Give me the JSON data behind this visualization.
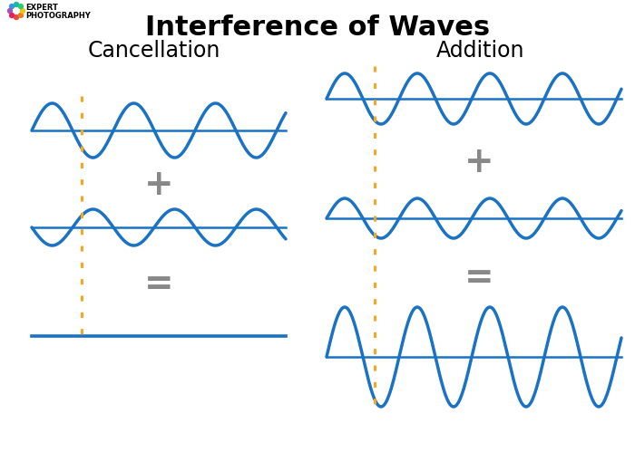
{
  "title": "Interference of Waves",
  "title_fontsize": 22,
  "title_fontweight": "bold",
  "bg_color": "#ffffff",
  "wave_color": "#1a72c4",
  "wave_linewidth": 2.5,
  "baseline_linewidth": 1.8,
  "dotted_color": "#f5a623",
  "dotted_linewidth": 2.2,
  "operator_color": "#888888",
  "operator_fontsize": 28,
  "section_label_fontsize": 17,
  "cancellation_label": "Cancellation",
  "addition_label": "Addition",
  "logo_text_line1": "EXPERT",
  "logo_text_line2": "PHOTOGRAPHY",
  "logo_fontsize": 6.0,
  "logo_fontweight": "bold",
  "logo_colors": [
    "#e74c3c",
    "#e67e22",
    "#f1c40f",
    "#2ecc71",
    "#1abc9c",
    "#3498db",
    "#9b59b6",
    "#e91e63"
  ]
}
